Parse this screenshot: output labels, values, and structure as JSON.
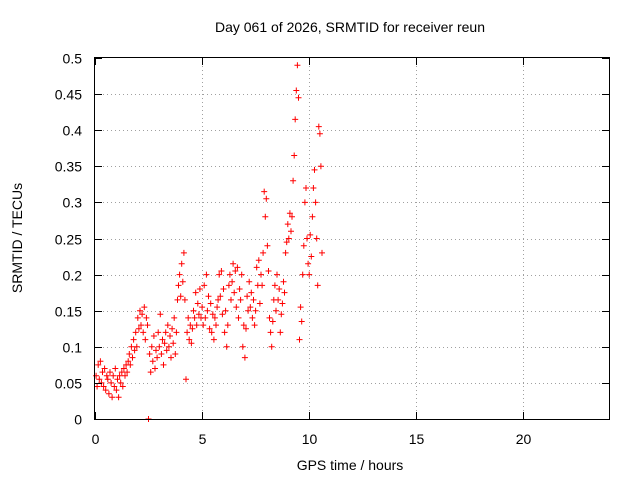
{
  "chart_data": {
    "type": "scatter",
    "title": "Day 061 of 2026, SRMTID for receiver reun",
    "xlabel": "GPS time / hours",
    "ylabel": "SRMTID / TECUs",
    "xlim": [
      0,
      24
    ],
    "ylim": [
      0,
      0.5
    ],
    "xticks": [
      0,
      5,
      10,
      15,
      20
    ],
    "xtick_labels": [
      "0",
      "5",
      "10",
      "15",
      "20"
    ],
    "yticks": [
      0,
      0.05,
      0.1,
      0.15,
      0.2,
      0.25,
      0.3,
      0.35,
      0.4,
      0.45,
      0.5
    ],
    "ytick_labels": [
      "0",
      "0.05",
      "0.1",
      "0.15",
      "0.2",
      "0.25",
      "0.3",
      "0.35",
      "0.4",
      "0.45",
      "0.5"
    ],
    "grid": true,
    "marker": "+",
    "color": "#ff0000",
    "series": [
      {
        "name": "SRMTID",
        "points": [
          [
            0.05,
            0.06
          ],
          [
            0.1,
            0.045
          ],
          [
            0.15,
            0.075
          ],
          [
            0.2,
            0.055
          ],
          [
            0.25,
            0.08
          ],
          [
            0.3,
            0.05
          ],
          [
            0.35,
            0.065
          ],
          [
            0.4,
            0.045
          ],
          [
            0.45,
            0.07
          ],
          [
            0.5,
            0.04
          ],
          [
            0.55,
            0.06
          ],
          [
            0.6,
            0.055
          ],
          [
            0.65,
            0.035
          ],
          [
            0.7,
            0.065
          ],
          [
            0.75,
            0.05
          ],
          [
            0.8,
            0.03
          ],
          [
            0.85,
            0.06
          ],
          [
            0.9,
            0.045
          ],
          [
            0.95,
            0.07
          ],
          [
            1.0,
            0.04
          ],
          [
            1.05,
            0.055
          ],
          [
            1.1,
            0.03
          ],
          [
            1.15,
            0.06
          ],
          [
            1.2,
            0.05
          ],
          [
            1.25,
            0.065
          ],
          [
            1.3,
            0.045
          ],
          [
            1.35,
            0.07
          ],
          [
            1.4,
            0.06
          ],
          [
            1.45,
            0.075
          ],
          [
            1.5,
            0.065
          ],
          [
            1.55,
            0.08
          ],
          [
            1.6,
            0.09
          ],
          [
            1.65,
            0.075
          ],
          [
            1.7,
            0.1
          ],
          [
            1.75,
            0.085
          ],
          [
            1.8,
            0.11
          ],
          [
            1.85,
            0.095
          ],
          [
            1.9,
            0.12
          ],
          [
            1.95,
            0.1
          ],
          [
            2.0,
            0.14
          ],
          [
            2.05,
            0.125
          ],
          [
            2.1,
            0.15
          ],
          [
            2.15,
            0.13
          ],
          [
            2.2,
            0.145
          ],
          [
            2.25,
            0.12
          ],
          [
            2.3,
            0.155
          ],
          [
            2.35,
            0.11
          ],
          [
            2.4,
            0.14
          ],
          [
            2.45,
            0.13
          ],
          [
            2.5,
            0.0
          ],
          [
            2.55,
            0.09
          ],
          [
            2.6,
            0.065
          ],
          [
            2.65,
            0.1
          ],
          [
            2.7,
            0.08
          ],
          [
            2.75,
            0.115
          ],
          [
            2.8,
            0.07
          ],
          [
            2.85,
            0.095
          ],
          [
            2.9,
            0.085
          ],
          [
            2.95,
            0.12
          ],
          [
            3.0,
            0.1
          ],
          [
            3.05,
            0.145
          ],
          [
            3.1,
            0.09
          ],
          [
            3.15,
            0.11
          ],
          [
            3.2,
            0.075
          ],
          [
            3.25,
            0.105
          ],
          [
            3.3,
            0.12
          ],
          [
            3.35,
            0.095
          ],
          [
            3.4,
            0.13
          ],
          [
            3.45,
            0.1
          ],
          [
            3.5,
            0.115
          ],
          [
            3.55,
            0.085
          ],
          [
            3.6,
            0.125
          ],
          [
            3.65,
            0.105
          ],
          [
            3.7,
            0.14
          ],
          [
            3.75,
            0.09
          ],
          [
            3.8,
            0.12
          ],
          [
            3.85,
            0.165
          ],
          [
            3.9,
            0.185
          ],
          [
            3.95,
            0.2
          ],
          [
            4.0,
            0.17
          ],
          [
            4.05,
            0.215
          ],
          [
            4.1,
            0.19
          ],
          [
            4.15,
            0.23
          ],
          [
            4.2,
            0.165
          ],
          [
            4.25,
            0.055
          ],
          [
            4.3,
            0.12
          ],
          [
            4.35,
            0.14
          ],
          [
            4.4,
            0.11
          ],
          [
            4.45,
            0.13
          ],
          [
            4.5,
            0.105
          ],
          [
            4.55,
            0.125
          ],
          [
            4.6,
            0.15
          ],
          [
            4.65,
            0.14
          ],
          [
            4.7,
            0.175
          ],
          [
            4.75,
            0.13
          ],
          [
            4.8,
            0.16
          ],
          [
            4.85,
            0.145
          ],
          [
            4.9,
            0.18
          ],
          [
            4.95,
            0.14
          ],
          [
            5.0,
            0.155
          ],
          [
            5.05,
            0.13
          ],
          [
            5.1,
            0.185
          ],
          [
            5.15,
            0.14
          ],
          [
            5.2,
            0.2
          ],
          [
            5.25,
            0.15
          ],
          [
            5.3,
            0.17
          ],
          [
            5.35,
            0.125
          ],
          [
            5.4,
            0.16
          ],
          [
            5.45,
            0.12
          ],
          [
            5.5,
            0.145
          ],
          [
            5.55,
            0.11
          ],
          [
            5.6,
            0.14
          ],
          [
            5.65,
            0.13
          ],
          [
            5.7,
            0.155
          ],
          [
            5.75,
            0.165
          ],
          [
            5.8,
            0.2
          ],
          [
            5.85,
            0.17
          ],
          [
            5.9,
            0.205
          ],
          [
            5.95,
            0.145
          ],
          [
            6.0,
            0.18
          ],
          [
            6.05,
            0.12
          ],
          [
            6.1,
            0.15
          ],
          [
            6.15,
            0.1
          ],
          [
            6.2,
            0.13
          ],
          [
            6.25,
            0.185
          ],
          [
            6.3,
            0.2
          ],
          [
            6.35,
            0.165
          ],
          [
            6.4,
            0.19
          ],
          [
            6.45,
            0.215
          ],
          [
            6.5,
            0.175
          ],
          [
            6.55,
            0.205
          ],
          [
            6.6,
            0.155
          ],
          [
            6.65,
            0.21
          ],
          [
            6.7,
            0.14
          ],
          [
            6.75,
            0.18
          ],
          [
            6.8,
            0.165
          ],
          [
            6.85,
            0.2
          ],
          [
            6.9,
            0.1
          ],
          [
            6.95,
            0.13
          ],
          [
            7.0,
            0.085
          ],
          [
            7.05,
            0.125
          ],
          [
            7.1,
            0.17
          ],
          [
            7.15,
            0.15
          ],
          [
            7.2,
            0.19
          ],
          [
            7.25,
            0.155
          ],
          [
            7.3,
            0.175
          ],
          [
            7.35,
            0.14
          ],
          [
            7.4,
            0.165
          ],
          [
            7.45,
            0.13
          ],
          [
            7.5,
            0.15
          ],
          [
            7.55,
            0.21
          ],
          [
            7.6,
            0.185
          ],
          [
            7.65,
            0.22
          ],
          [
            7.7,
            0.16
          ],
          [
            7.75,
            0.2
          ],
          [
            7.8,
            0.185
          ],
          [
            7.85,
            0.23
          ],
          [
            7.9,
            0.315
          ],
          [
            7.95,
            0.28
          ],
          [
            8.0,
            0.305
          ],
          [
            8.05,
            0.24
          ],
          [
            8.1,
            0.205
          ],
          [
            8.15,
            0.14
          ],
          [
            8.2,
            0.12
          ],
          [
            8.25,
            0.1
          ],
          [
            8.3,
            0.135
          ],
          [
            8.35,
            0.165
          ],
          [
            8.4,
            0.185
          ],
          [
            8.45,
            0.15
          ],
          [
            8.5,
            0.2
          ],
          [
            8.55,
            0.165
          ],
          [
            8.6,
            0.18
          ],
          [
            8.65,
            0.12
          ],
          [
            8.7,
            0.145
          ],
          [
            8.75,
            0.16
          ],
          [
            8.8,
            0.19
          ],
          [
            8.85,
            0.175
          ],
          [
            8.9,
            0.23
          ],
          [
            8.95,
            0.245
          ],
          [
            9.0,
            0.27
          ],
          [
            9.05,
            0.25
          ],
          [
            9.1,
            0.285
          ],
          [
            9.15,
            0.26
          ],
          [
            9.2,
            0.28
          ],
          [
            9.25,
            0.33
          ],
          [
            9.3,
            0.365
          ],
          [
            9.35,
            0.415
          ],
          [
            9.4,
            0.455
          ],
          [
            9.45,
            0.49
          ],
          [
            9.5,
            0.445
          ],
          [
            9.55,
            0.11
          ],
          [
            9.6,
            0.155
          ],
          [
            9.65,
            0.135
          ],
          [
            9.7,
            0.2
          ],
          [
            9.75,
            0.24
          ],
          [
            9.8,
            0.3
          ],
          [
            9.85,
            0.32
          ],
          [
            9.9,
            0.25
          ],
          [
            9.95,
            0.215
          ],
          [
            10.0,
            0.2
          ],
          [
            10.05,
            0.255
          ],
          [
            10.1,
            0.225
          ],
          [
            10.15,
            0.28
          ],
          [
            10.2,
            0.32
          ],
          [
            10.25,
            0.345
          ],
          [
            10.3,
            0.3
          ],
          [
            10.35,
            0.25
          ],
          [
            10.4,
            0.185
          ],
          [
            10.45,
            0.405
          ],
          [
            10.5,
            0.395
          ],
          [
            10.55,
            0.35
          ],
          [
            10.6,
            0.23
          ]
        ]
      }
    ]
  }
}
